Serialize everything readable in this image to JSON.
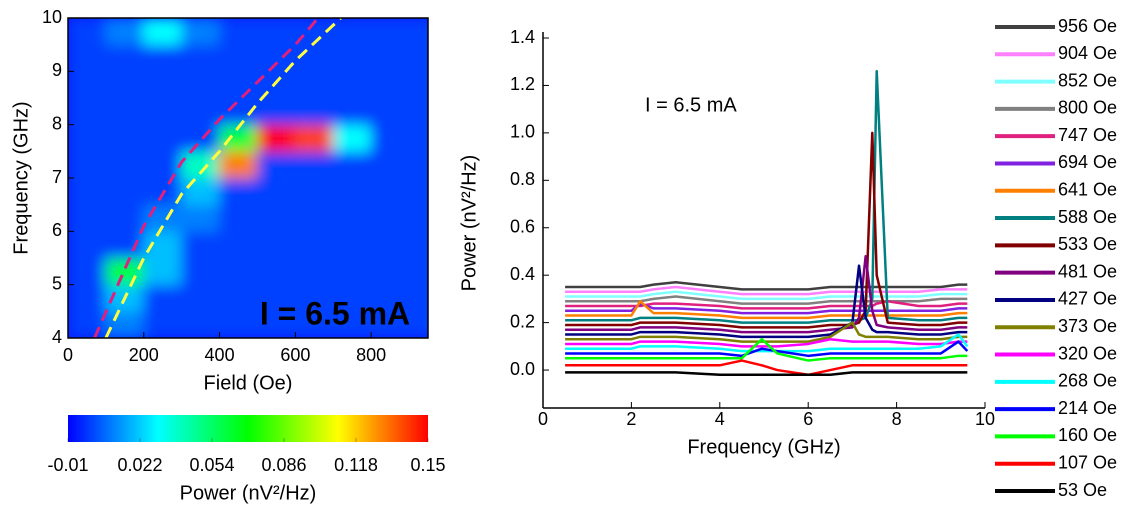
{
  "chart_data": [
    {
      "type": "heatmap",
      "xlabel": "Field (Oe)",
      "ylabel": "Frequency (GHz)",
      "annotation": "I = 6.5 mA",
      "annotation_color": "#ffff00",
      "x": [
        50,
        150,
        250,
        350,
        450,
        550,
        650,
        750,
        850,
        950
      ],
      "y": [
        4.25,
        4.75,
        5.25,
        5.75,
        6.25,
        6.75,
        7.25,
        7.75,
        8.25,
        8.75,
        9.25,
        9.75
      ],
      "z": [
        [
          0,
          0.01,
          0,
          0,
          0,
          0,
          0,
          0,
          0,
          0
        ],
        [
          0,
          0.02,
          0,
          0,
          0,
          0,
          0,
          0,
          0,
          0
        ],
        [
          0,
          0.06,
          0.02,
          0,
          0,
          0,
          0,
          0,
          0,
          0
        ],
        [
          0,
          0,
          0.02,
          0,
          0,
          0,
          0,
          0,
          0,
          0
        ],
        [
          0,
          0,
          0.01,
          0.01,
          0,
          0,
          0,
          0,
          0,
          0
        ],
        [
          0,
          0,
          0,
          0.02,
          0,
          0,
          0,
          0,
          0,
          0
        ],
        [
          0,
          0,
          0,
          0.04,
          0.13,
          0,
          0,
          0,
          0,
          0
        ],
        [
          0,
          0,
          0,
          0,
          0.06,
          0.15,
          0.14,
          0.03,
          0,
          0
        ],
        [
          0,
          0,
          0,
          0,
          0,
          0,
          0,
          0,
          0,
          0
        ],
        [
          0,
          0,
          0,
          0,
          0,
          0,
          0,
          0,
          0,
          0
        ],
        [
          0,
          0,
          0,
          0,
          0,
          0,
          0,
          0,
          0,
          0
        ],
        [
          0,
          0.01,
          0.03,
          0.01,
          0,
          0,
          0,
          0,
          0,
          0
        ]
      ],
      "xlim": [
        0,
        950
      ],
      "ylim": [
        4,
        10
      ],
      "xticks": [
        0,
        200,
        400,
        600,
        800
      ],
      "yticks": [
        4,
        5,
        6,
        7,
        8,
        9,
        10
      ],
      "curves": [
        {
          "color": "#e0207f",
          "x": [
            70,
            200,
            300,
            400,
            500,
            600,
            660
          ],
          "y": [
            4,
            6.1,
            7.3,
            8.1,
            8.8,
            9.5,
            10
          ]
        },
        {
          "color": "#ffff40",
          "x": [
            100,
            200,
            300,
            400,
            500,
            600,
            720
          ],
          "y": [
            4,
            5.5,
            6.7,
            7.5,
            8.4,
            9.2,
            10
          ]
        }
      ],
      "colorbar": {
        "label": "Power (nV²/Hz)",
        "lim": [
          -0.01,
          0.15
        ],
        "ticks": [
          -0.01,
          0.022,
          0.054,
          0.086,
          0.118,
          0.15
        ],
        "colormap": [
          "#0000ff",
          "#00ffff",
          "#00ff00",
          "#ffff00",
          "#ff0000"
        ]
      }
    },
    {
      "type": "line",
      "xlabel": "Frequency (GHz)",
      "ylabel": "Power (nV²/Hz)",
      "annotation": "I = 6.5 mA",
      "legend": "right",
      "x": [
        0.5,
        1,
        1.5,
        2,
        2.2,
        2.5,
        3,
        4,
        4.5,
        4.95,
        5.3,
        6,
        6.5,
        7.0,
        7.15,
        7.3,
        7.45,
        7.55,
        7.8,
        8.5,
        9,
        9.4,
        9.6
      ],
      "xlim": [
        0,
        10
      ],
      "ylim": [
        -0.16,
        1.4
      ],
      "xticks": [
        0,
        2,
        4,
        6,
        8,
        10
      ],
      "yticks": [
        {
          "value": 0,
          "label": "0.0"
        },
        0.2,
        0.4,
        0.6,
        0.8,
        {
          "value": 1,
          "label": "1.0"
        },
        1.2,
        1.4
      ],
      "series": [
        {
          "name": "956 Oe",
          "color": "#404040",
          "values": [
            0.35,
            0.35,
            0.35,
            0.35,
            0.35,
            0.36,
            0.37,
            0.35,
            0.34,
            0.34,
            0.34,
            0.34,
            0.35,
            0.35,
            0.35,
            0.35,
            0.35,
            0.35,
            0.35,
            0.35,
            0.35,
            0.36,
            0.36
          ]
        },
        {
          "name": "904 Oe",
          "color": "#ff80ff",
          "values": [
            0.33,
            0.33,
            0.33,
            0.33,
            0.33,
            0.34,
            0.35,
            0.33,
            0.32,
            0.32,
            0.32,
            0.32,
            0.33,
            0.33,
            0.33,
            0.33,
            0.33,
            0.33,
            0.33,
            0.33,
            0.34,
            0.34,
            0.34
          ]
        },
        {
          "name": "852 Oe",
          "color": "#80ffff",
          "values": [
            0.31,
            0.31,
            0.31,
            0.31,
            0.31,
            0.32,
            0.33,
            0.31,
            0.3,
            0.3,
            0.3,
            0.3,
            0.31,
            0.31,
            0.31,
            0.31,
            0.31,
            0.31,
            0.31,
            0.31,
            0.32,
            0.32,
            0.32
          ]
        },
        {
          "name": "800 Oe",
          "color": "#808080",
          "values": [
            0.29,
            0.29,
            0.29,
            0.29,
            0.29,
            0.3,
            0.31,
            0.29,
            0.28,
            0.28,
            0.28,
            0.28,
            0.29,
            0.29,
            0.29,
            0.29,
            0.29,
            0.29,
            0.29,
            0.29,
            0.3,
            0.3,
            0.3
          ]
        },
        {
          "name": "747 Oe",
          "color": "#e0207f",
          "values": [
            0.27,
            0.27,
            0.27,
            0.27,
            0.27,
            0.28,
            0.28,
            0.27,
            0.26,
            0.26,
            0.26,
            0.26,
            0.27,
            0.27,
            0.27,
            0.27,
            0.27,
            0.28,
            0.29,
            0.27,
            0.27,
            0.28,
            0.28
          ]
        },
        {
          "name": "694 Oe",
          "color": "#8020e0",
          "values": [
            0.25,
            0.25,
            0.25,
            0.25,
            0.28,
            0.26,
            0.26,
            0.25,
            0.24,
            0.24,
            0.24,
            0.24,
            0.25,
            0.25,
            0.25,
            0.25,
            0.25,
            0.25,
            0.25,
            0.25,
            0.25,
            0.26,
            0.26
          ]
        },
        {
          "name": "641 Oe",
          "color": "#ff8000",
          "values": [
            0.23,
            0.23,
            0.23,
            0.23,
            0.29,
            0.24,
            0.24,
            0.23,
            0.22,
            0.22,
            0.22,
            0.22,
            0.23,
            0.23,
            0.23,
            0.23,
            0.23,
            0.23,
            0.23,
            0.23,
            0.23,
            0.24,
            0.24
          ]
        },
        {
          "name": "588 Oe",
          "color": "#008080",
          "values": [
            0.21,
            0.21,
            0.21,
            0.21,
            0.22,
            0.22,
            0.22,
            0.21,
            0.2,
            0.2,
            0.2,
            0.2,
            0.21,
            0.21,
            0.21,
            0.22,
            0.3,
            1.26,
            0.22,
            0.21,
            0.21,
            0.22,
            0.22
          ]
        },
        {
          "name": "533 Oe",
          "color": "#800000",
          "values": [
            0.19,
            0.19,
            0.19,
            0.19,
            0.2,
            0.2,
            0.2,
            0.19,
            0.18,
            0.18,
            0.18,
            0.18,
            0.19,
            0.19,
            0.2,
            0.25,
            1.0,
            0.4,
            0.2,
            0.19,
            0.19,
            0.2,
            0.2
          ]
        },
        {
          "name": "481 Oe",
          "color": "#800080",
          "values": [
            0.17,
            0.17,
            0.17,
            0.17,
            0.18,
            0.18,
            0.18,
            0.17,
            0.16,
            0.16,
            0.16,
            0.16,
            0.17,
            0.18,
            0.22,
            0.48,
            0.25,
            0.19,
            0.18,
            0.17,
            0.17,
            0.18,
            0.18
          ]
        },
        {
          "name": "427 Oe",
          "color": "#000080",
          "values": [
            0.15,
            0.15,
            0.15,
            0.15,
            0.16,
            0.16,
            0.16,
            0.15,
            0.14,
            0.14,
            0.14,
            0.14,
            0.15,
            0.2,
            0.44,
            0.22,
            0.17,
            0.16,
            0.16,
            0.15,
            0.15,
            0.16,
            0.16
          ]
        },
        {
          "name": "373 Oe",
          "color": "#808000",
          "values": [
            0.13,
            0.13,
            0.13,
            0.13,
            0.14,
            0.14,
            0.14,
            0.13,
            0.12,
            0.12,
            0.12,
            0.12,
            0.14,
            0.2,
            0.15,
            0.14,
            0.14,
            0.14,
            0.14,
            0.13,
            0.13,
            0.14,
            0.14
          ]
        },
        {
          "name": "320 Oe",
          "color": "#ff00ff",
          "values": [
            0.11,
            0.11,
            0.11,
            0.11,
            0.12,
            0.12,
            0.12,
            0.11,
            0.1,
            0.1,
            0.1,
            0.11,
            0.13,
            0.12,
            0.12,
            0.12,
            0.12,
            0.12,
            0.12,
            0.11,
            0.11,
            0.12,
            0.12
          ]
        },
        {
          "name": "268 Oe",
          "color": "#00ffff",
          "values": [
            0.09,
            0.09,
            0.09,
            0.09,
            0.1,
            0.1,
            0.1,
            0.09,
            0.08,
            0.08,
            0.08,
            0.08,
            0.09,
            0.09,
            0.09,
            0.09,
            0.09,
            0.09,
            0.09,
            0.09,
            0.1,
            0.15,
            0.1
          ]
        },
        {
          "name": "214 Oe",
          "color": "#0000ff",
          "values": [
            0.07,
            0.07,
            0.07,
            0.07,
            0.07,
            0.07,
            0.07,
            0.07,
            0.06,
            0.09,
            0.08,
            0.06,
            0.07,
            0.07,
            0.07,
            0.07,
            0.07,
            0.07,
            0.07,
            0.07,
            0.07,
            0.12,
            0.08
          ]
        },
        {
          "name": "160 Oe",
          "color": "#00ff00",
          "values": [
            0.05,
            0.05,
            0.05,
            0.05,
            0.05,
            0.05,
            0.05,
            0.05,
            0.05,
            0.13,
            0.07,
            0.04,
            0.05,
            0.05,
            0.05,
            0.05,
            0.05,
            0.05,
            0.05,
            0.05,
            0.05,
            0.06,
            0.06
          ]
        },
        {
          "name": "107 Oe",
          "color": "#ff0000",
          "values": [
            0.02,
            0.02,
            0.02,
            0.02,
            0.02,
            0.02,
            0.02,
            0.02,
            0.04,
            0.02,
            0.0,
            -0.02,
            0.0,
            0.02,
            0.02,
            0.02,
            0.02,
            0.02,
            0.02,
            0.02,
            0.02,
            0.02,
            0.02
          ]
        },
        {
          "name": "53 Oe",
          "color": "#000000",
          "values": [
            -0.01,
            -0.01,
            -0.01,
            -0.01,
            -0.01,
            -0.01,
            -0.01,
            -0.02,
            -0.02,
            -0.02,
            -0.02,
            -0.02,
            -0.02,
            -0.01,
            -0.01,
            -0.01,
            -0.01,
            -0.01,
            -0.01,
            -0.01,
            -0.01,
            -0.01,
            -0.01
          ]
        }
      ]
    }
  ]
}
